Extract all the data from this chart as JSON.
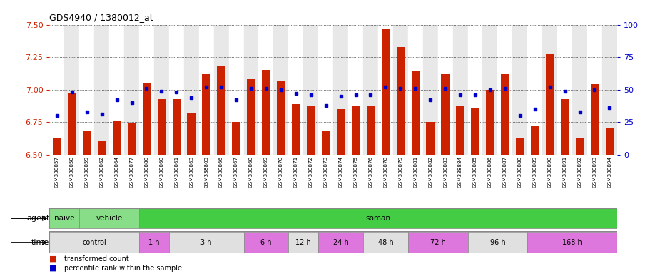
{
  "title": "GDS4940 / 1380012_at",
  "samples": [
    "GSM338857",
    "GSM338858",
    "GSM338859",
    "GSM338862",
    "GSM338864",
    "GSM338877",
    "GSM338880",
    "GSM338860",
    "GSM338861",
    "GSM338863",
    "GSM338865",
    "GSM338866",
    "GSM338867",
    "GSM338868",
    "GSM338869",
    "GSM338870",
    "GSM338871",
    "GSM338872",
    "GSM338873",
    "GSM338874",
    "GSM338875",
    "GSM338876",
    "GSM338878",
    "GSM338879",
    "GSM338881",
    "GSM338882",
    "GSM338883",
    "GSM338884",
    "GSM338885",
    "GSM338886",
    "GSM338887",
    "GSM338888",
    "GSM338889",
    "GSM338890",
    "GSM338891",
    "GSM338892",
    "GSM338893",
    "GSM338894"
  ],
  "red_values": [
    6.63,
    6.97,
    6.68,
    6.61,
    6.76,
    6.74,
    7.05,
    6.93,
    6.93,
    6.82,
    7.12,
    7.18,
    6.75,
    7.08,
    7.15,
    7.07,
    6.89,
    6.88,
    6.68,
    6.85,
    6.87,
    6.87,
    7.47,
    7.33,
    7.14,
    6.75,
    7.12,
    6.88,
    6.86,
    7.0,
    7.12,
    6.63,
    6.72,
    7.28,
    6.93,
    6.63,
    7.04,
    6.7
  ],
  "blue_values": [
    30,
    48,
    33,
    31,
    42,
    40,
    51,
    49,
    48,
    44,
    52,
    52,
    42,
    51,
    51,
    50,
    47,
    46,
    38,
    45,
    46,
    46,
    52,
    51,
    51,
    42,
    51,
    46,
    46,
    50,
    51,
    30,
    35,
    52,
    49,
    33,
    50,
    36
  ],
  "ylim_left": [
    6.5,
    7.5
  ],
  "ylim_right": [
    0,
    100
  ],
  "yticks_left": [
    6.5,
    6.75,
    7.0,
    7.25,
    7.5
  ],
  "yticks_right": [
    0,
    25,
    50,
    75,
    100
  ],
  "bar_color": "#CC2200",
  "dot_color": "#0000CC",
  "bg_color_odd": "#E8E8E8",
  "bg_color_even": "#FFFFFF",
  "agent_naive_color": "#88DD88",
  "agent_vehicle_color": "#88DD88",
  "agent_soman_color": "#44CC44",
  "time_violet": "#DD77DD",
  "time_gray": "#E0E0E0",
  "agent_groups": [
    {
      "label": "naive",
      "start": 0,
      "end": 2
    },
    {
      "label": "vehicle",
      "start": 2,
      "end": 6
    },
    {
      "label": "soman",
      "start": 6,
      "end": 38
    }
  ],
  "time_groups": [
    {
      "label": "control",
      "start": 0,
      "end": 6,
      "type": "gray"
    },
    {
      "label": "1 h",
      "start": 6,
      "end": 8,
      "type": "violet"
    },
    {
      "label": "3 h",
      "start": 8,
      "end": 13,
      "type": "gray"
    },
    {
      "label": "6 h",
      "start": 13,
      "end": 16,
      "type": "violet"
    },
    {
      "label": "12 h",
      "start": 16,
      "end": 18,
      "type": "gray"
    },
    {
      "label": "24 h",
      "start": 18,
      "end": 21,
      "type": "violet"
    },
    {
      "label": "48 h",
      "start": 21,
      "end": 24,
      "type": "gray"
    },
    {
      "label": "72 h",
      "start": 24,
      "end": 28,
      "type": "violet"
    },
    {
      "label": "96 h",
      "start": 28,
      "end": 32,
      "type": "gray"
    },
    {
      "label": "168 h",
      "start": 32,
      "end": 38,
      "type": "violet"
    }
  ]
}
